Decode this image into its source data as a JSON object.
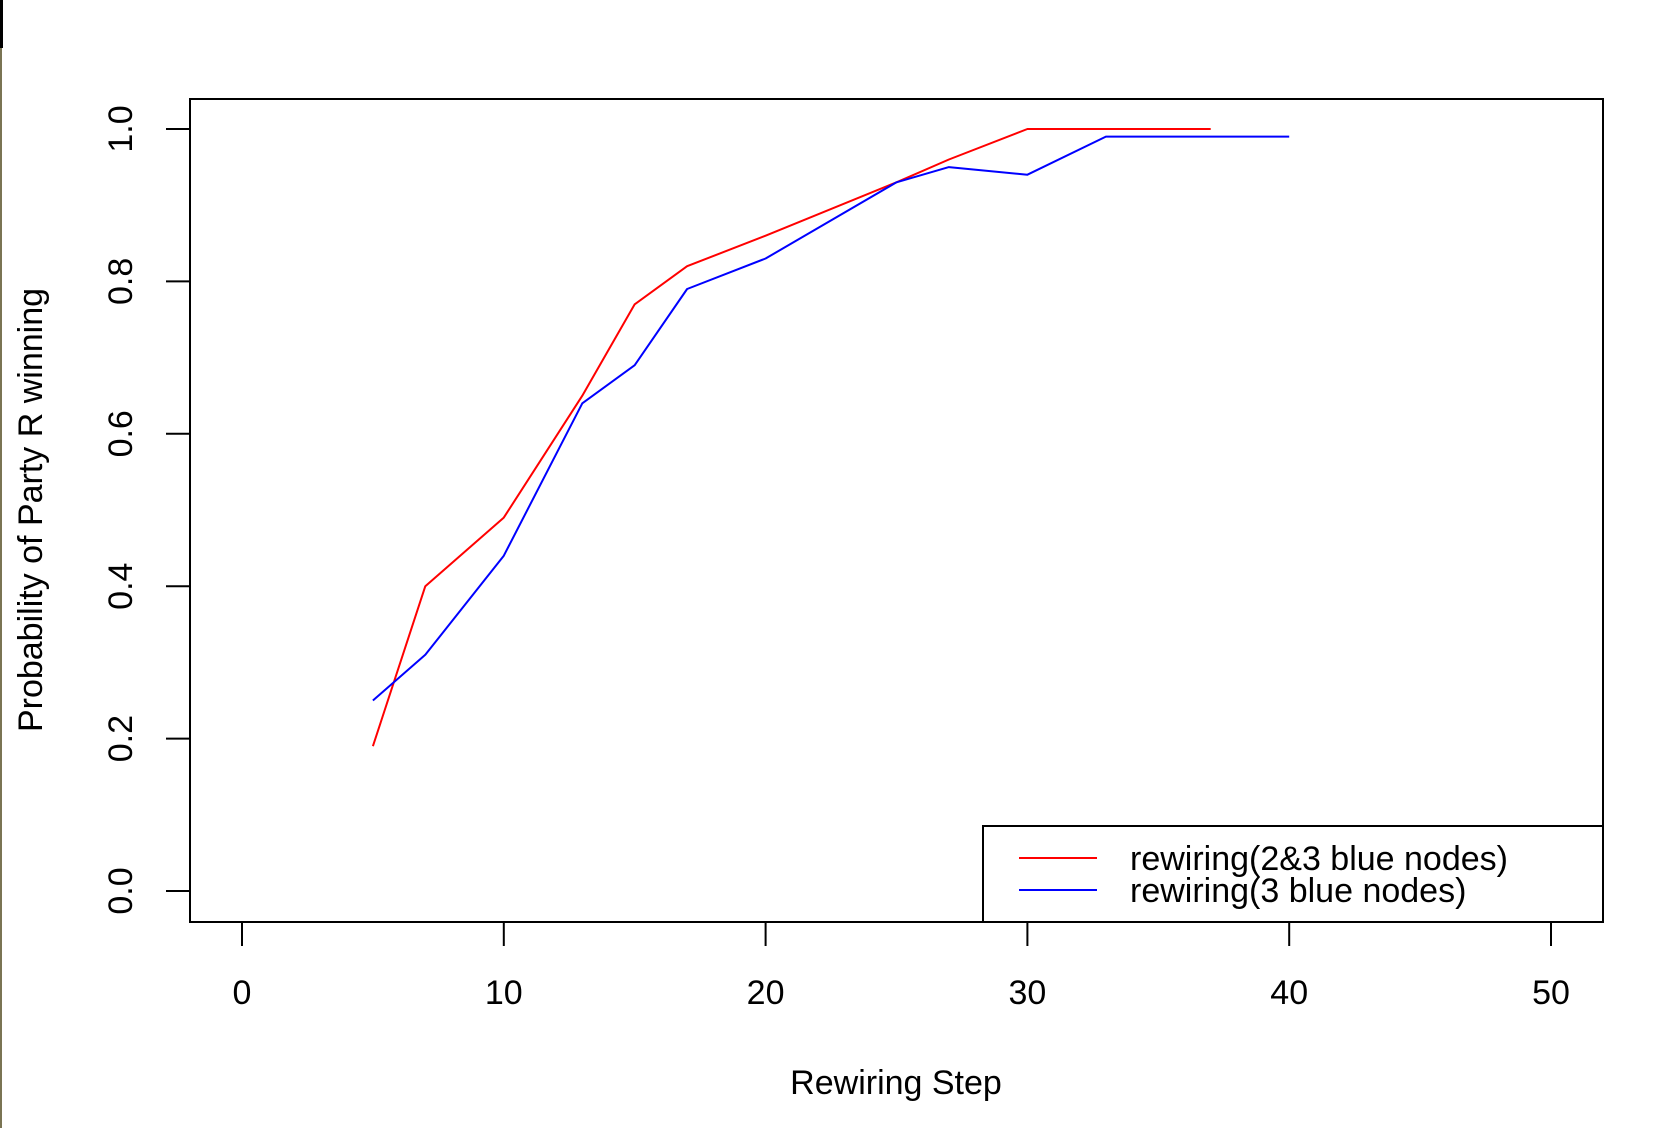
{
  "chart_data": {
    "type": "line",
    "title": "",
    "xlabel": "Rewiring Step",
    "ylabel": "Probability of Party R winning",
    "xlim": [
      0,
      50
    ],
    "ylim": [
      0,
      1.0
    ],
    "x_ticks": [
      "0",
      "10",
      "20",
      "30",
      "40",
      "50"
    ],
    "y_ticks": [
      "0.0",
      "0.2",
      "0.4",
      "0.6",
      "0.8",
      "1.0"
    ],
    "grid": false,
    "legend_position": "bottom-right",
    "series": [
      {
        "name": "rewiring(2&3 blue nodes)",
        "color": "#ff0000",
        "x": [
          5,
          7,
          10,
          13,
          15,
          17,
          20,
          25,
          27,
          30,
          33,
          37
        ],
        "y": [
          0.19,
          0.4,
          0.49,
          0.65,
          0.77,
          0.82,
          0.86,
          0.93,
          0.96,
          1.0,
          1.0,
          1.0
        ]
      },
      {
        "name": "rewiring(3 blue nodes)",
        "color": "#0000ff",
        "x": [
          5,
          7,
          10,
          13,
          15,
          17,
          20,
          25,
          27,
          30,
          33,
          37,
          40
        ],
        "y": [
          0.25,
          0.31,
          0.44,
          0.64,
          0.69,
          0.79,
          0.83,
          0.93,
          0.95,
          0.94,
          0.99,
          0.99,
          0.99
        ]
      }
    ]
  }
}
